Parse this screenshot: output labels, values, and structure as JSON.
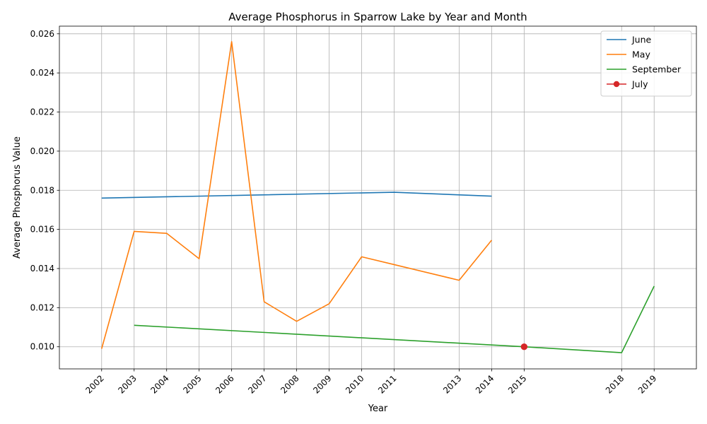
{
  "chart_data": {
    "type": "line",
    "title": "Average Phosphorus in Sparrow Lake by Year and Month",
    "xlabel": "Year",
    "ylabel": "Average Phosphorus Value",
    "xlim": [
      2000.7,
      2020.3
    ],
    "ylim": [
      0.00887,
      0.02639
    ],
    "grid": true,
    "legend_position": "top-right",
    "x_ticks": [
      2002,
      2003,
      2004,
      2005,
      2006,
      2007,
      2008,
      2009,
      2010,
      2011,
      2013,
      2014,
      2015,
      2018,
      2019
    ],
    "x_tick_labels": [
      "2002",
      "2003",
      "2004",
      "2005",
      "2006",
      "2007",
      "2008",
      "2009",
      "2010",
      "2011",
      "2013",
      "2014",
      "2015",
      "2018",
      "2019"
    ],
    "y_ticks": [
      0.01,
      0.012,
      0.014,
      0.016,
      0.018,
      0.02,
      0.022,
      0.024,
      0.026
    ],
    "y_tick_labels": [
      "0.010",
      "0.012",
      "0.014",
      "0.016",
      "0.018",
      "0.020",
      "0.022",
      "0.024",
      "0.026"
    ],
    "series": [
      {
        "name": "June",
        "color": "#1f77b4",
        "marker": "none",
        "x": [
          2002,
          2011,
          2014
        ],
        "y": [
          0.0176,
          0.0179,
          0.0177
        ]
      },
      {
        "name": "May",
        "color": "#ff7f0e",
        "marker": "none",
        "x": [
          2002,
          2003,
          2004,
          2005,
          2006,
          2007,
          2008,
          2009,
          2010,
          2011,
          2013,
          2014
        ],
        "y": [
          0.0099,
          0.0159,
          0.0158,
          0.0145,
          0.0256,
          0.0123,
          0.0113,
          0.0122,
          0.0146,
          0.0142,
          0.0134,
          0.01545
        ]
      },
      {
        "name": "September",
        "color": "#2ca02c",
        "marker": "none",
        "x": [
          2003,
          2015,
          2018,
          2019
        ],
        "y": [
          0.0111,
          0.01,
          0.0097,
          0.0131
        ]
      },
      {
        "name": "July",
        "color": "#d62728",
        "marker": "circle",
        "x": [
          2015
        ],
        "y": [
          0.01
        ]
      }
    ]
  }
}
